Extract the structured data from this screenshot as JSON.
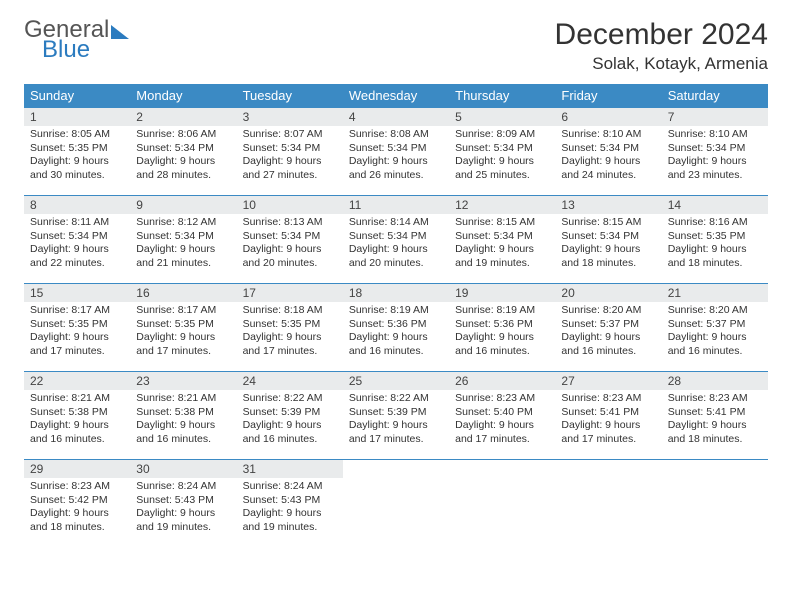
{
  "brand": {
    "word1": "General",
    "word2": "Blue",
    "accent": "#2b7bbf"
  },
  "title": "December 2024",
  "location": "Solak, Kotayk, Armenia",
  "colors": {
    "header_bg": "#3b8ac4",
    "header_fg": "#ffffff",
    "daynum_bg": "#e9ebec",
    "row_border": "#3b8ac4",
    "text": "#333333"
  },
  "weekdays": [
    "Sunday",
    "Monday",
    "Tuesday",
    "Wednesday",
    "Thursday",
    "Friday",
    "Saturday"
  ],
  "weeks": [
    [
      {
        "n": "1",
        "sr": "8:05 AM",
        "ss": "5:35 PM",
        "dl": "9 hours and 30 minutes."
      },
      {
        "n": "2",
        "sr": "8:06 AM",
        "ss": "5:34 PM",
        "dl": "9 hours and 28 minutes."
      },
      {
        "n": "3",
        "sr": "8:07 AM",
        "ss": "5:34 PM",
        "dl": "9 hours and 27 minutes."
      },
      {
        "n": "4",
        "sr": "8:08 AM",
        "ss": "5:34 PM",
        "dl": "9 hours and 26 minutes."
      },
      {
        "n": "5",
        "sr": "8:09 AM",
        "ss": "5:34 PM",
        "dl": "9 hours and 25 minutes."
      },
      {
        "n": "6",
        "sr": "8:10 AM",
        "ss": "5:34 PM",
        "dl": "9 hours and 24 minutes."
      },
      {
        "n": "7",
        "sr": "8:10 AM",
        "ss": "5:34 PM",
        "dl": "9 hours and 23 minutes."
      }
    ],
    [
      {
        "n": "8",
        "sr": "8:11 AM",
        "ss": "5:34 PM",
        "dl": "9 hours and 22 minutes."
      },
      {
        "n": "9",
        "sr": "8:12 AM",
        "ss": "5:34 PM",
        "dl": "9 hours and 21 minutes."
      },
      {
        "n": "10",
        "sr": "8:13 AM",
        "ss": "5:34 PM",
        "dl": "9 hours and 20 minutes."
      },
      {
        "n": "11",
        "sr": "8:14 AM",
        "ss": "5:34 PM",
        "dl": "9 hours and 20 minutes."
      },
      {
        "n": "12",
        "sr": "8:15 AM",
        "ss": "5:34 PM",
        "dl": "9 hours and 19 minutes."
      },
      {
        "n": "13",
        "sr": "8:15 AM",
        "ss": "5:34 PM",
        "dl": "9 hours and 18 minutes."
      },
      {
        "n": "14",
        "sr": "8:16 AM",
        "ss": "5:35 PM",
        "dl": "9 hours and 18 minutes."
      }
    ],
    [
      {
        "n": "15",
        "sr": "8:17 AM",
        "ss": "5:35 PM",
        "dl": "9 hours and 17 minutes."
      },
      {
        "n": "16",
        "sr": "8:17 AM",
        "ss": "5:35 PM",
        "dl": "9 hours and 17 minutes."
      },
      {
        "n": "17",
        "sr": "8:18 AM",
        "ss": "5:35 PM",
        "dl": "9 hours and 17 minutes."
      },
      {
        "n": "18",
        "sr": "8:19 AM",
        "ss": "5:36 PM",
        "dl": "9 hours and 16 minutes."
      },
      {
        "n": "19",
        "sr": "8:19 AM",
        "ss": "5:36 PM",
        "dl": "9 hours and 16 minutes."
      },
      {
        "n": "20",
        "sr": "8:20 AM",
        "ss": "5:37 PM",
        "dl": "9 hours and 16 minutes."
      },
      {
        "n": "21",
        "sr": "8:20 AM",
        "ss": "5:37 PM",
        "dl": "9 hours and 16 minutes."
      }
    ],
    [
      {
        "n": "22",
        "sr": "8:21 AM",
        "ss": "5:38 PM",
        "dl": "9 hours and 16 minutes."
      },
      {
        "n": "23",
        "sr": "8:21 AM",
        "ss": "5:38 PM",
        "dl": "9 hours and 16 minutes."
      },
      {
        "n": "24",
        "sr": "8:22 AM",
        "ss": "5:39 PM",
        "dl": "9 hours and 16 minutes."
      },
      {
        "n": "25",
        "sr": "8:22 AM",
        "ss": "5:39 PM",
        "dl": "9 hours and 17 minutes."
      },
      {
        "n": "26",
        "sr": "8:23 AM",
        "ss": "5:40 PM",
        "dl": "9 hours and 17 minutes."
      },
      {
        "n": "27",
        "sr": "8:23 AM",
        "ss": "5:41 PM",
        "dl": "9 hours and 17 minutes."
      },
      {
        "n": "28",
        "sr": "8:23 AM",
        "ss": "5:41 PM",
        "dl": "9 hours and 18 minutes."
      }
    ],
    [
      {
        "n": "29",
        "sr": "8:23 AM",
        "ss": "5:42 PM",
        "dl": "9 hours and 18 minutes."
      },
      {
        "n": "30",
        "sr": "8:24 AM",
        "ss": "5:43 PM",
        "dl": "9 hours and 19 minutes."
      },
      {
        "n": "31",
        "sr": "8:24 AM",
        "ss": "5:43 PM",
        "dl": "9 hours and 19 minutes."
      },
      null,
      null,
      null,
      null
    ]
  ],
  "labels": {
    "sunrise": "Sunrise:",
    "sunset": "Sunset:",
    "daylight": "Daylight:"
  }
}
